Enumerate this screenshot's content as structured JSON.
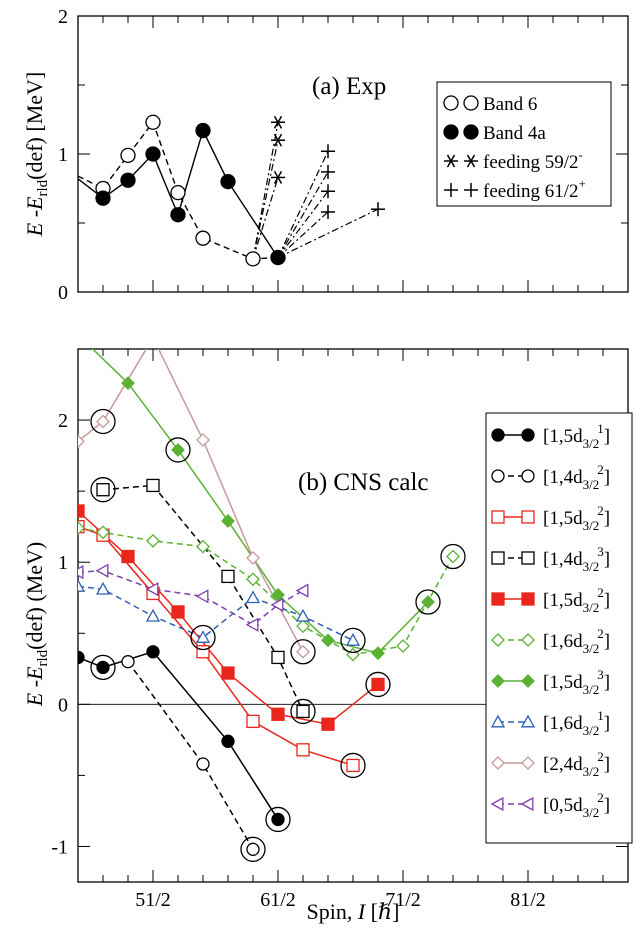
{
  "chart_data": [
    {
      "type": "line",
      "panel_title": "(a) Exp",
      "xlabel": "",
      "ylabel": "E -E rld(def) [MeV]",
      "ylabel_main": "E -E",
      "ylabel_sub": "rld",
      "ylabel_tail": "(def) [MeV]",
      "xlim": [
        45,
        89
      ],
      "ylim": [
        0,
        2
      ],
      "yticks": [
        "0",
        "1",
        "2"
      ],
      "legend_position": "top-right",
      "series": [
        {
          "name": "Band 6",
          "legend_main": "Band  6",
          "legend_sup": "",
          "style": "open-circle",
          "line": "dashed",
          "color": "#000000",
          "points": [
            [
              44.5,
              0.84
            ],
            [
              47,
              0.75
            ],
            [
              49,
              0.99
            ],
            [
              51,
              1.23
            ],
            [
              53,
              0.72
            ],
            [
              55,
              0.39
            ],
            [
              59,
              0.24
            ],
            [
              61,
              0.25
            ]
          ]
        },
        {
          "name": "Band 4a",
          "legend_main": "Band  4a",
          "legend_sup": "",
          "style": "filled-circle",
          "line": "solid",
          "color": "#000000",
          "points": [
            [
              44.5,
              0.82
            ],
            [
              47,
              0.68
            ],
            [
              49,
              0.81
            ],
            [
              51,
              1.0
            ],
            [
              53,
              0.56
            ],
            [
              55,
              1.17
            ],
            [
              57,
              0.8
            ],
            [
              61,
              0.25
            ]
          ]
        },
        {
          "name": "feeding 59/2-",
          "legend_main": "feeding 59/2",
          "legend_sup": "-",
          "style": "asterisk",
          "line": "dashdot",
          "color": "#000000",
          "points": [
            [
              59,
              0.24
            ],
            [
              61,
              1.23
            ],
            [
              59,
              0.24
            ],
            [
              61,
              1.1
            ],
            [
              59,
              0.24
            ],
            [
              61,
              0.83
            ]
          ]
        },
        {
          "name": "feeding 61/2+",
          "legend_main": "feeding 61/2",
          "legend_sup": "+",
          "style": "plus",
          "line": "dashdot",
          "color": "#000000",
          "points": [
            [
              61,
              0.25
            ],
            [
              65,
              1.02
            ],
            [
              61,
              0.25
            ],
            [
              65,
              0.87
            ],
            [
              61,
              0.25
            ],
            [
              65,
              0.73
            ],
            [
              61,
              0.25
            ],
            [
              65,
              0.58
            ],
            [
              61,
              0.25
            ],
            [
              69,
              0.6
            ]
          ]
        }
      ]
    },
    {
      "type": "line",
      "panel_title": "(b) CNS calc",
      "xlabel": "Spin, I [ℏ]",
      "xlabel_pre": "Spin, ",
      "xlabel_var": "I",
      "xlabel_post": " [ℏ]",
      "ylabel": "E -E rld(def) (MeV)",
      "ylabel_main": "E -E",
      "ylabel_sub": "rld",
      "ylabel_tail": "(def) (MeV)",
      "xlim": [
        45,
        89
      ],
      "ylim": [
        -1.25,
        2.5
      ],
      "xticks": [
        [
          "51/2",
          51
        ],
        [
          "61/2",
          61
        ],
        [
          "71/2",
          71
        ],
        [
          "81/2",
          81
        ]
      ],
      "yticks": [
        [
          "-1",
          -1
        ],
        [
          "0",
          0
        ],
        [
          "1",
          1
        ],
        [
          "2",
          2
        ]
      ],
      "legend_position": "right",
      "series": [
        {
          "legend": "[1,5d",
          "sub": "3/2",
          "sup": "1",
          "color": "#000000",
          "marker": "circle",
          "fill": true,
          "dash": "",
          "points": [
            [
              45,
              0.33
            ],
            [
              47,
              0.26
            ],
            [
              51,
              0.37
            ],
            [
              57,
              -0.26
            ],
            [
              61,
              -0.81
            ]
          ]
        },
        {
          "legend": "[1,4d",
          "sub": "3/2",
          "sup": "2",
          "color": "#000000",
          "marker": "circle",
          "fill": false,
          "dash": "6,4",
          "points": [
            [
              49,
              0.3
            ],
            [
              55,
              -0.42
            ],
            [
              59,
              -1.02
            ]
          ]
        },
        {
          "legend": "[1,5d",
          "sub": "3/2",
          "sup": "2",
          "color": "#e8261c",
          "marker": "square",
          "fill": false,
          "dash": "",
          "points": [
            [
              45,
              1.25
            ],
            [
              47,
              1.19
            ],
            [
              51,
              0.78
            ],
            [
              55,
              0.37
            ],
            [
              59,
              -0.12
            ],
            [
              63,
              -0.32
            ],
            [
              67,
              -0.43
            ]
          ]
        },
        {
          "legend": "[1,4d",
          "sub": "3/2",
          "sup": "3",
          "color": "#000000",
          "marker": "square",
          "fill": false,
          "dash": "6,4",
          "points": [
            [
              47,
              1.51
            ],
            [
              51,
              1.54
            ],
            [
              57,
              0.9
            ],
            [
              61,
              0.33
            ],
            [
              63,
              -0.05
            ]
          ]
        },
        {
          "legend": "[1,5d",
          "sub": "3/2",
          "sup": "2",
          "color": "#e8261c",
          "marker": "square",
          "fill": true,
          "dash": "",
          "points": [
            [
              45,
              1.36
            ],
            [
              49,
              1.04
            ],
            [
              53,
              0.65
            ],
            [
              57,
              0.22
            ],
            [
              61,
              -0.07
            ],
            [
              65,
              -0.14
            ],
            [
              69,
              0.14
            ]
          ]
        },
        {
          "legend": "[1,6d",
          "sub": "3/2",
          "sup": "2",
          "color": "#5bb134",
          "marker": "diamond",
          "fill": false,
          "dash": "6,4",
          "points": [
            [
              45,
              1.24
            ],
            [
              47,
              1.21
            ],
            [
              51,
              1.15
            ],
            [
              55,
              1.11
            ],
            [
              59,
              0.88
            ],
            [
              63,
              0.55
            ],
            [
              67,
              0.35
            ],
            [
              71,
              0.41
            ],
            [
              75,
              1.04
            ]
          ]
        },
        {
          "legend": "[1,5d",
          "sub": "3/2",
          "sup": "3",
          "color": "#5bb134",
          "marker": "diamond",
          "fill": true,
          "dash": "",
          "points": [
            [
              45,
              2.6
            ],
            [
              49,
              2.26
            ],
            [
              53,
              1.79
            ],
            [
              57,
              1.29
            ],
            [
              61,
              0.77
            ],
            [
              65,
              0.45
            ],
            [
              69,
              0.36
            ],
            [
              73,
              0.72
            ]
          ]
        },
        {
          "legend": "[1,6d",
          "sub": "3/2",
          "sup": "1",
          "color": "#2e5fb4",
          "marker": "triangle-up",
          "fill": false,
          "dash": "6,4",
          "points": [
            [
              45,
              0.83
            ],
            [
              47,
              0.81
            ],
            [
              51,
              0.62
            ],
            [
              55,
              0.47
            ],
            [
              59,
              0.75
            ],
            [
              63,
              0.62
            ],
            [
              67,
              0.45
            ]
          ]
        },
        {
          "legend": "[2,4d",
          "sub": "3/2",
          "sup": "2",
          "color": "#c49a9a",
          "marker": "diamond",
          "fill": false,
          "dash": "",
          "points": [
            [
              45,
              1.85
            ],
            [
              47,
              1.99
            ],
            [
              51,
              2.58
            ],
            [
              55,
              1.86
            ],
            [
              59,
              1.03
            ],
            [
              63,
              0.37
            ]
          ]
        },
        {
          "legend": "[0,5d",
          "sub": "3/2",
          "sup": "2",
          "color": "#7d3fae",
          "marker": "triangle-left",
          "fill": false,
          "dash": "6,4",
          "points": [
            [
              45,
              0.93
            ],
            [
              47,
              0.94
            ],
            [
              51,
              0.81
            ],
            [
              55,
              0.76
            ],
            [
              59,
              0.56
            ],
            [
              61,
              0.7
            ],
            [
              63,
              0.8
            ]
          ]
        }
      ],
      "circled_points": [
        [
          47,
          1.99
        ],
        [
          47,
          1.51
        ],
        [
          53,
          1.79
        ],
        [
          47,
          0.26
        ],
        [
          55,
          0.47
        ],
        [
          63,
          0.37
        ],
        [
          63,
          -0.05
        ],
        [
          67,
          0.45
        ],
        [
          69,
          0.14
        ],
        [
          67,
          -0.43
        ],
        [
          61,
          -0.81
        ],
        [
          59,
          -1.02
        ],
        [
          73,
          0.72
        ],
        [
          75,
          1.04
        ]
      ]
    }
  ]
}
